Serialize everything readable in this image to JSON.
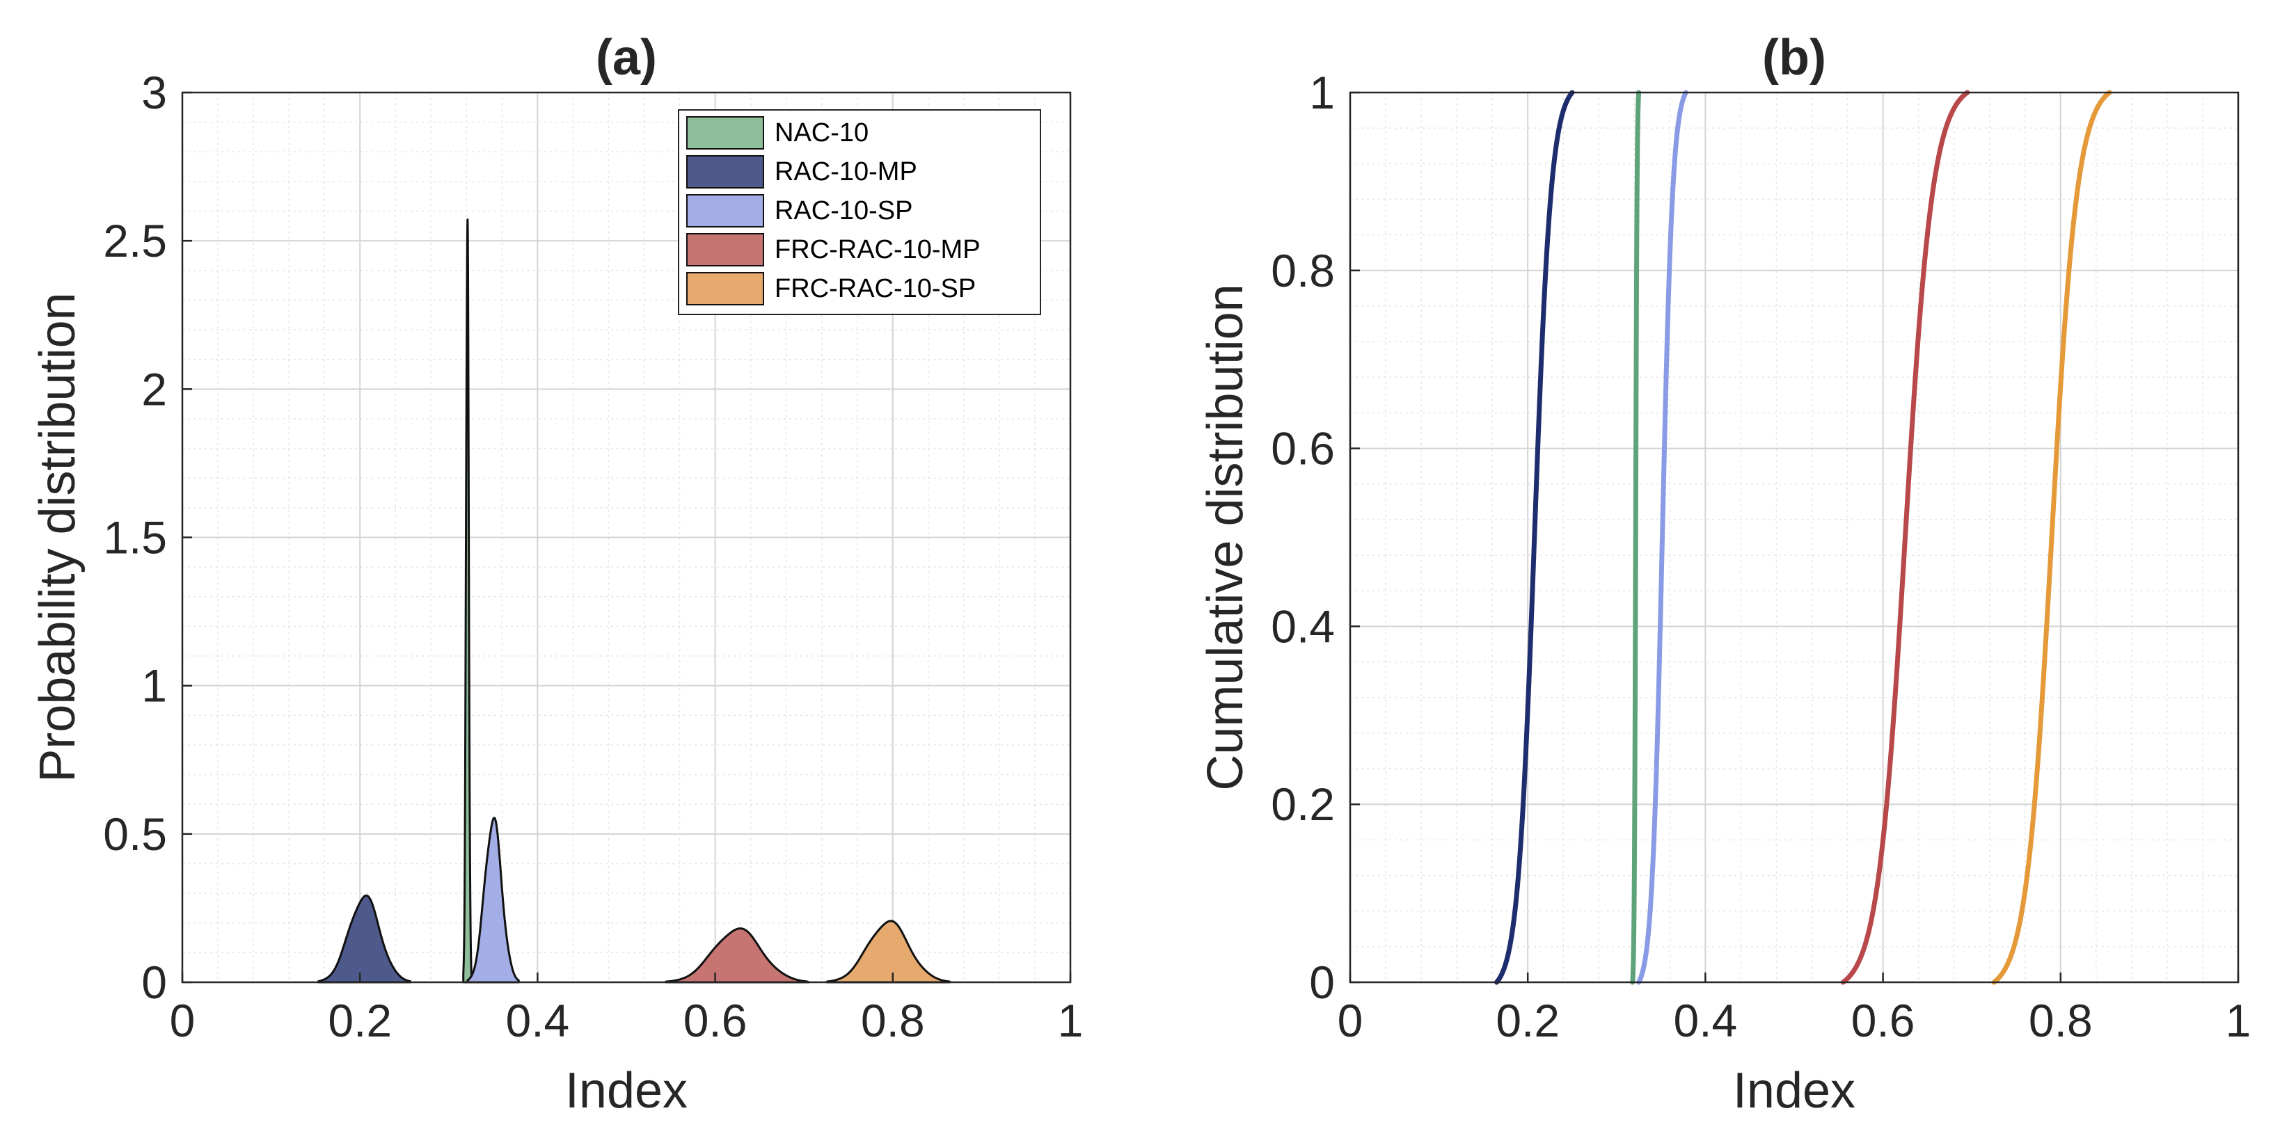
{
  "chart_data": [
    {
      "type": "area",
      "title": "(a)",
      "xlabel": "Index",
      "ylabel": "Probability distribution",
      "xlim": [
        0,
        1
      ],
      "ylim": [
        0,
        3
      ],
      "xticks": [
        "0",
        "0.2",
        "0.4",
        "0.6",
        "0.8",
        "1"
      ],
      "yticks": [
        "0",
        "0.5",
        "1",
        "1.5",
        "2",
        "2.5",
        "3"
      ],
      "grid": true,
      "minor_grid": true,
      "legend_position": "top-right",
      "series": [
        {
          "name": "NAC-10",
          "color": "#8fbf9a",
          "mean": 0.321,
          "peak": 2.55,
          "halfwidth": 0.004
        },
        {
          "name": "RAC-10-MP",
          "color": "#4f5a8c",
          "mean": 0.205,
          "peak": 0.29,
          "halfwidth": 0.045
        },
        {
          "name": "RAC-10-SP",
          "color": "#a3aee6",
          "mean": 0.35,
          "peak": 0.55,
          "halfwidth": 0.025
        },
        {
          "name": "FRC-RAC-10-MP",
          "color": "#c77572",
          "mean": 0.625,
          "peak": 0.18,
          "halfwidth": 0.07
        },
        {
          "name": "FRC-RAC-10-SP",
          "color": "#e6aa6e",
          "mean": 0.795,
          "peak": 0.205,
          "halfwidth": 0.06
        }
      ]
    },
    {
      "type": "line",
      "title": "(b)",
      "xlabel": "Index",
      "ylabel": "Cumulative distribution",
      "xlim": [
        0,
        1
      ],
      "ylim": [
        0,
        1
      ],
      "xticks": [
        "0",
        "0.2",
        "0.4",
        "0.6",
        "0.8",
        "1"
      ],
      "yticks": [
        "0",
        "0.2",
        "0.4",
        "0.6",
        "0.8",
        "1"
      ],
      "grid": true,
      "minor_grid": true,
      "series": [
        {
          "name": "RAC-10-MP",
          "color": "#1e2d6e",
          "x0": 0.165,
          "x1": 0.25
        },
        {
          "name": "NAC-10",
          "color": "#5fa37a",
          "x0": 0.318,
          "x1": 0.325
        },
        {
          "name": "RAC-10-SP",
          "color": "#8a9be6",
          "x0": 0.325,
          "x1": 0.378
        },
        {
          "name": "FRC-RAC-10-MP",
          "color": "#b8484a",
          "x0": 0.555,
          "x1": 0.695
        },
        {
          "name": "FRC-RAC-10-SP",
          "color": "#e59a3a",
          "x0": 0.725,
          "x1": 0.855
        }
      ]
    }
  ]
}
